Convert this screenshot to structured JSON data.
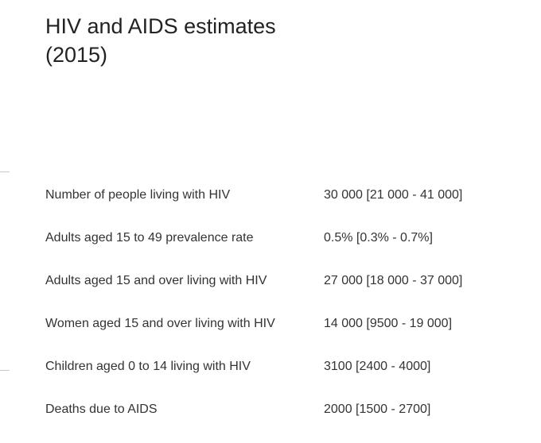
{
  "header": {
    "title_line1": "HIV and AIDS estimates",
    "title_line2": "(2015)"
  },
  "stats": [
    {
      "label": "Number of people living with HIV",
      "value": "30 000 [21 000 - 41 000]"
    },
    {
      "label": "Adults aged 15 to 49 prevalence rate",
      "value": "0.5% [0.3% - 0.7%]"
    },
    {
      "label": "Adults aged 15 and over living with HIV",
      "value": "27 000 [18 000 - 37 000]"
    },
    {
      "label": "Women aged 15 and over living with HIV",
      "value": "14 000 [9500 - 19 000]"
    },
    {
      "label": "Children aged 0 to 14 living with HIV",
      "value": "3100 [2400 - 4000]"
    },
    {
      "label": "Deaths due to AIDS",
      "value": "2000 [1500 - 2700]"
    }
  ]
}
